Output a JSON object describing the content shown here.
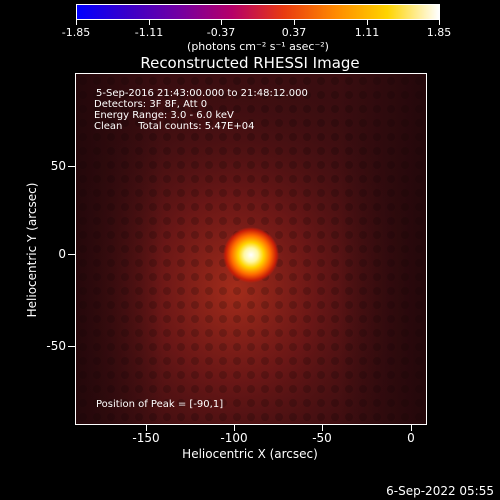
{
  "colorbar": {
    "tick_labels": [
      "-1.85",
      "-1.11",
      "-0.37",
      "0.37",
      "1.11",
      "1.85"
    ],
    "units_label": "(photons cm⁻² s⁻¹ asec⁻²)",
    "colors": [
      "#0000ff",
      "#3b00c8",
      "#7400a0",
      "#b50068",
      "#e83a10",
      "#ff8a00",
      "#ffd400",
      "#ffffff"
    ]
  },
  "title": "Reconstructed RHESSI Image",
  "info": {
    "line1": "5-Sep-2016 21:43:00.000 to 21:48:12.000",
    "line2": "Detectors: 3F 8F, Att 0",
    "line3": "Energy Range: 3.0 - 6.0 keV",
    "line4": "Clean     Total counts: 5.47E+04",
    "peak": "Position of Peak = [-90,1]"
  },
  "axes": {
    "xlabel": "Heliocentric X (arcsec)",
    "ylabel": "Heliocentric Y (arcsec)",
    "xticks": [
      "-150",
      "-100",
      "-50",
      "0"
    ],
    "yticks": [
      "50",
      "0",
      "-50"
    ]
  },
  "timestamp": "6-Sep-2022 05:55"
}
